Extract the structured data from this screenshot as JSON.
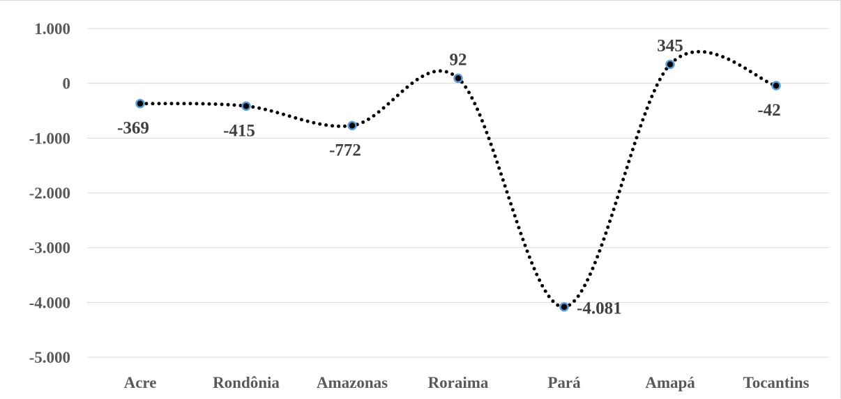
{
  "chart_data": {
    "type": "line",
    "categories": [
      "Acre",
      "Rondônia",
      "Amazonas",
      "Roraima",
      "Pará",
      "Amapá",
      "Tocantins"
    ],
    "values": [
      -369,
      -415,
      -772,
      92,
      -4081,
      345,
      -42
    ],
    "data_labels": [
      "-369",
      "-415",
      "-772",
      "92",
      "-4.081",
      "345",
      "-42"
    ],
    "ylim": [
      -5000,
      1000
    ],
    "yticks": [
      1000,
      0,
      -1000,
      -2000,
      -3000,
      -4000,
      -5000
    ],
    "ytick_labels": [
      "1.000",
      "0",
      "-1.000",
      "-2.000",
      "-3.000",
      "-4.000",
      "-5.000"
    ],
    "line_style": "dotted smoothed",
    "line_color": "#000000",
    "marker_fill": "#000000",
    "marker_edge": "#5b9bd5",
    "grid": true,
    "legend": "none",
    "title": "",
    "xlabel": "",
    "ylabel": ""
  }
}
